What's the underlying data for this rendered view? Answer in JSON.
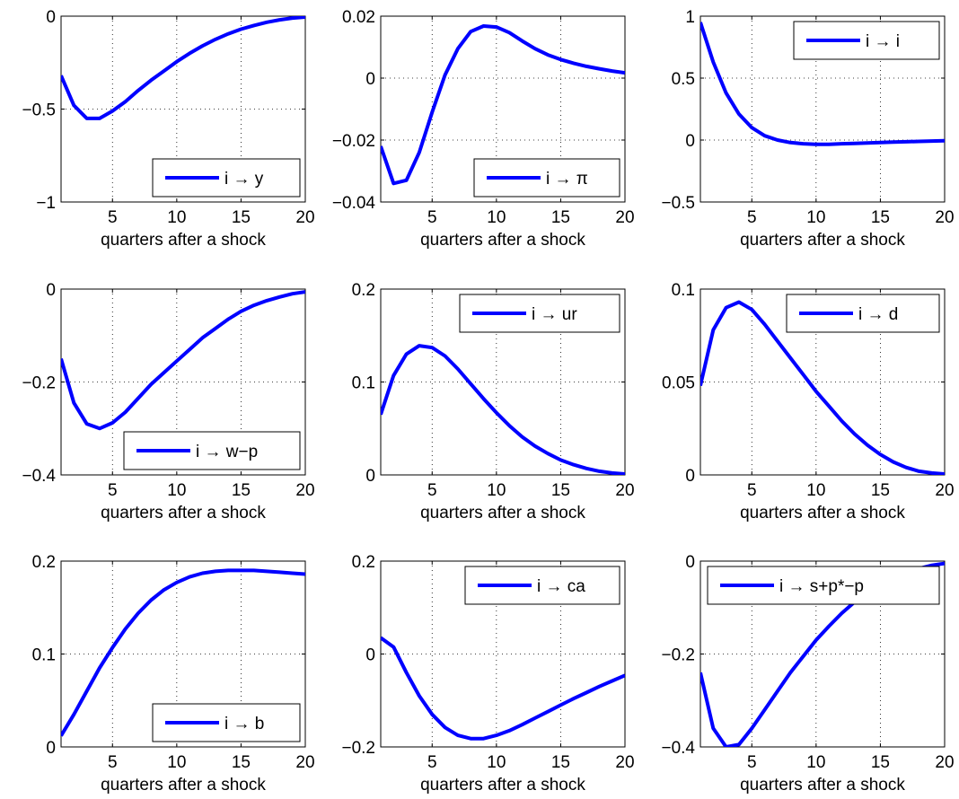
{
  "chart_data": [
    {
      "type": "line",
      "xlabel": "quarters after a shock",
      "xlim": [
        1,
        20
      ],
      "ylim": [
        -1,
        0
      ],
      "xticks": [
        "5",
        "10",
        "15",
        "20"
      ],
      "yticks": [
        "0",
        "−0.5",
        "−1"
      ],
      "grid": true,
      "legend_position": "bottom-right",
      "series": [
        {
          "name": "i → y",
          "color": "#0000ff",
          "x": [
            1,
            2,
            3,
            4,
            5,
            6,
            7,
            8,
            9,
            10,
            11,
            12,
            13,
            14,
            15,
            16,
            17,
            18,
            19,
            20
          ],
          "y": [
            -0.32,
            -0.48,
            -0.55,
            -0.55,
            -0.51,
            -0.46,
            -0.4,
            -0.345,
            -0.295,
            -0.245,
            -0.2,
            -0.16,
            -0.125,
            -0.095,
            -0.07,
            -0.05,
            -0.033,
            -0.02,
            -0.01,
            -0.005
          ]
        }
      ]
    },
    {
      "type": "line",
      "xlabel": "quarters after a shock",
      "xlim": [
        1,
        20
      ],
      "ylim": [
        -0.04,
        0.02
      ],
      "xticks": [
        "5",
        "10",
        "15",
        "20"
      ],
      "yticks": [
        "0.02",
        "0",
        "−0.02",
        "−0.04"
      ],
      "grid": true,
      "legend_position": "bottom-right",
      "series": [
        {
          "name": "i → π",
          "color": "#0000ff",
          "x": [
            1,
            2,
            3,
            4,
            5,
            6,
            7,
            8,
            9,
            10,
            11,
            12,
            13,
            14,
            15,
            16,
            17,
            18,
            19,
            20
          ],
          "y": [
            -0.022,
            -0.034,
            -0.033,
            -0.024,
            -0.011,
            0.001,
            0.0095,
            0.015,
            0.0168,
            0.0165,
            0.0147,
            0.012,
            0.0095,
            0.0075,
            0.006,
            0.0048,
            0.0038,
            0.003,
            0.0023,
            0.0017
          ]
        }
      ]
    },
    {
      "type": "line",
      "xlabel": "quarters after a shock",
      "xlim": [
        1,
        20
      ],
      "ylim": [
        -0.5,
        1
      ],
      "xticks": [
        "5",
        "10",
        "15",
        "20"
      ],
      "yticks": [
        "1",
        "0.5",
        "0",
        "−0.5"
      ],
      "grid": true,
      "legend_position": "top-right",
      "series": [
        {
          "name": "i → i",
          "color": "#0000ff",
          "x": [
            1,
            2,
            3,
            4,
            5,
            6,
            7,
            8,
            9,
            10,
            11,
            12,
            13,
            14,
            15,
            16,
            17,
            18,
            19,
            20
          ],
          "y": [
            0.95,
            0.63,
            0.38,
            0.21,
            0.1,
            0.035,
            0.0,
            -0.02,
            -0.03,
            -0.035,
            -0.034,
            -0.03,
            -0.027,
            -0.024,
            -0.02,
            -0.017,
            -0.014,
            -0.011,
            -0.008,
            -0.005
          ]
        }
      ]
    },
    {
      "type": "line",
      "xlabel": "quarters after a shock",
      "xlim": [
        1,
        20
      ],
      "ylim": [
        -0.4,
        0
      ],
      "xticks": [
        "5",
        "10",
        "15",
        "20"
      ],
      "yticks": [
        "0",
        "−0.2",
        "−0.4"
      ],
      "grid": true,
      "legend_position": "bottom-right",
      "series": [
        {
          "name": "i → w−p",
          "color": "#0000ff",
          "x": [
            1,
            2,
            3,
            4,
            5,
            6,
            7,
            8,
            9,
            10,
            11,
            12,
            13,
            14,
            15,
            16,
            17,
            18,
            19,
            20
          ],
          "y": [
            -0.15,
            -0.245,
            -0.29,
            -0.3,
            -0.288,
            -0.265,
            -0.235,
            -0.205,
            -0.18,
            -0.155,
            -0.13,
            -0.105,
            -0.085,
            -0.065,
            -0.048,
            -0.035,
            -0.025,
            -0.017,
            -0.01,
            -0.006
          ]
        }
      ]
    },
    {
      "type": "line",
      "xlabel": "quarters after a shock",
      "xlim": [
        1,
        20
      ],
      "ylim": [
        0,
        0.2
      ],
      "xticks": [
        "5",
        "10",
        "15",
        "20"
      ],
      "yticks": [
        "0.2",
        "0.1",
        "0"
      ],
      "grid": true,
      "legend_position": "top-right",
      "series": [
        {
          "name": "i → ur",
          "color": "#0000ff",
          "x": [
            1,
            2,
            3,
            4,
            5,
            6,
            7,
            8,
            9,
            10,
            11,
            12,
            13,
            14,
            15,
            16,
            17,
            18,
            19,
            20
          ],
          "y": [
            0.065,
            0.107,
            0.13,
            0.139,
            0.137,
            0.128,
            0.114,
            0.098,
            0.082,
            0.067,
            0.053,
            0.041,
            0.031,
            0.023,
            0.016,
            0.011,
            0.007,
            0.004,
            0.002,
            0.001
          ]
        }
      ]
    },
    {
      "type": "line",
      "xlabel": "quarters after a shock",
      "xlim": [
        1,
        20
      ],
      "ylim": [
        0,
        0.1
      ],
      "xticks": [
        "5",
        "10",
        "15",
        "20"
      ],
      "yticks": [
        "0.1",
        "0.05",
        "0"
      ],
      "grid": true,
      "legend_position": "top-right",
      "series": [
        {
          "name": "i → d",
          "color": "#0000ff",
          "x": [
            1,
            2,
            3,
            4,
            5,
            6,
            7,
            8,
            9,
            10,
            11,
            12,
            13,
            14,
            15,
            16,
            17,
            18,
            19,
            20
          ],
          "y": [
            0.048,
            0.078,
            0.09,
            0.093,
            0.089,
            0.081,
            0.072,
            0.063,
            0.054,
            0.045,
            0.037,
            0.029,
            0.022,
            0.016,
            0.011,
            0.007,
            0.004,
            0.002,
            0.001,
            0.0005
          ]
        }
      ]
    },
    {
      "type": "line",
      "xlabel": "quarters after a shock",
      "xlim": [
        1,
        20
      ],
      "ylim": [
        0,
        0.2
      ],
      "xticks": [
        "5",
        "10",
        "15",
        "20"
      ],
      "yticks": [
        "0.2",
        "0.1",
        "0"
      ],
      "grid": true,
      "legend_position": "bottom-right",
      "series": [
        {
          "name": "i → b",
          "color": "#0000ff",
          "x": [
            1,
            2,
            3,
            4,
            5,
            6,
            7,
            8,
            9,
            10,
            11,
            12,
            13,
            14,
            15,
            16,
            17,
            18,
            19,
            20
          ],
          "y": [
            0.012,
            0.035,
            0.06,
            0.085,
            0.107,
            0.127,
            0.144,
            0.158,
            0.169,
            0.177,
            0.183,
            0.187,
            0.189,
            0.19,
            0.19,
            0.19,
            0.189,
            0.188,
            0.187,
            0.186
          ]
        }
      ]
    },
    {
      "type": "line",
      "xlabel": "quarters after a shock",
      "xlim": [
        1,
        20
      ],
      "ylim": [
        -0.2,
        0.2
      ],
      "xticks": [
        "5",
        "10",
        "15",
        "20"
      ],
      "yticks": [
        "0.2",
        "0",
        "−0.2"
      ],
      "grid": true,
      "legend_position": "top-right",
      "series": [
        {
          "name": "i → ca",
          "color": "#0000ff",
          "x": [
            1,
            2,
            3,
            4,
            5,
            6,
            7,
            8,
            9,
            10,
            11,
            12,
            13,
            14,
            15,
            16,
            17,
            18,
            19,
            20
          ],
          "y": [
            0.035,
            0.015,
            -0.04,
            -0.09,
            -0.13,
            -0.158,
            -0.175,
            -0.182,
            -0.182,
            -0.175,
            -0.165,
            -0.152,
            -0.138,
            -0.124,
            -0.11,
            -0.096,
            -0.083,
            -0.07,
            -0.058,
            -0.046
          ]
        }
      ]
    },
    {
      "type": "line",
      "xlabel": "quarters after a shock",
      "xlim": [
        1,
        20
      ],
      "ylim": [
        -0.4,
        0
      ],
      "xticks": [
        "5",
        "10",
        "15",
        "20"
      ],
      "yticks": [
        "0",
        "−0.2",
        "−0.4"
      ],
      "grid": true,
      "legend_position": "top-right",
      "series": [
        {
          "name": "i → s+p*−p",
          "color": "#0000ff",
          "x": [
            1,
            2,
            3,
            4,
            5,
            6,
            7,
            8,
            9,
            10,
            11,
            12,
            13,
            14,
            15,
            16,
            17,
            18,
            19,
            20
          ],
          "y": [
            -0.24,
            -0.36,
            -0.4,
            -0.395,
            -0.36,
            -0.32,
            -0.28,
            -0.24,
            -0.205,
            -0.17,
            -0.14,
            -0.112,
            -0.088,
            -0.067,
            -0.05,
            -0.036,
            -0.025,
            -0.016,
            -0.009,
            -0.005
          ]
        }
      ]
    }
  ]
}
